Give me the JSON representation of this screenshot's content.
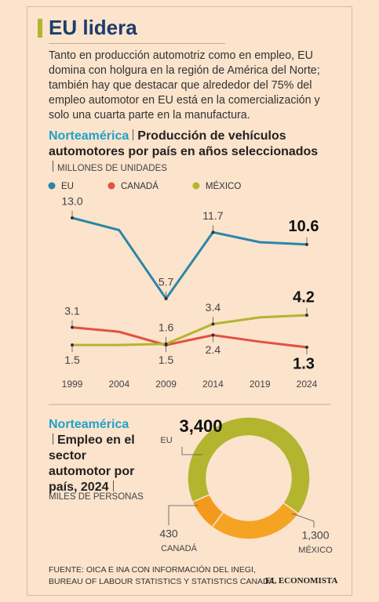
{
  "header": {
    "title": "EU lidera",
    "intro": "Tanto en producción automotriz como en empleo, EU domina con holgura en la región de América del Norte; también hay que destacar que alrededor del 75% del empleo automotor en EU está en la comercialización y solo una cuarta parte en la manufactura."
  },
  "chart_data": [
    {
      "type": "line",
      "region": "Norteamérica",
      "title": "Producción de vehículos automotores por país en años seleccionados",
      "subtitle": "MILLONES DE UNIDADES",
      "categories": [
        "1999",
        "2004",
        "2009",
        "2014",
        "2019",
        "2024"
      ],
      "series": [
        {
          "name": "EU",
          "color": "#2a86a8",
          "values": [
            13.0,
            11.9,
            5.7,
            11.7,
            10.8,
            10.6
          ],
          "value_labels": [
            "13.0",
            null,
            "5.7",
            "11.7",
            null,
            "10.6"
          ]
        },
        {
          "name": "CANADÁ",
          "color": "#e0533f",
          "values": [
            3.1,
            2.7,
            1.5,
            2.4,
            1.8,
            1.3
          ],
          "value_labels": [
            "3.1",
            null,
            "1.5",
            "2.4",
            null,
            "1.3"
          ]
        },
        {
          "name": "MÉXICO",
          "color": "#b3b52f",
          "values": [
            1.5,
            1.5,
            1.6,
            3.4,
            4.0,
            4.2
          ],
          "value_labels": [
            "1.5",
            null,
            "1.6",
            "3.4",
            null,
            "4.2"
          ]
        }
      ]
    },
    {
      "type": "pie",
      "region": "Norteamérica",
      "title": "Empleo en el sector automotor por país, 2024",
      "subtitle": "MILES DE PERSONAS",
      "categories": [
        "EU",
        "MÉXICO",
        "CANADÁ"
      ],
      "values": [
        3400,
        1300,
        430
      ],
      "value_labels": [
        "3,400",
        "1,300",
        "430"
      ],
      "colors": [
        "#b3b52f",
        "#f5a323",
        "#f39a1c"
      ]
    }
  ],
  "footer": {
    "source": [
      "FUENTE: OICA E INA CON INFORMACIÓN DEL INEGI,",
      "BUREAU OF LABOUR STATISTICS Y STATISTICS CANADA."
    ],
    "brand": "EL ECONOMISTA"
  }
}
